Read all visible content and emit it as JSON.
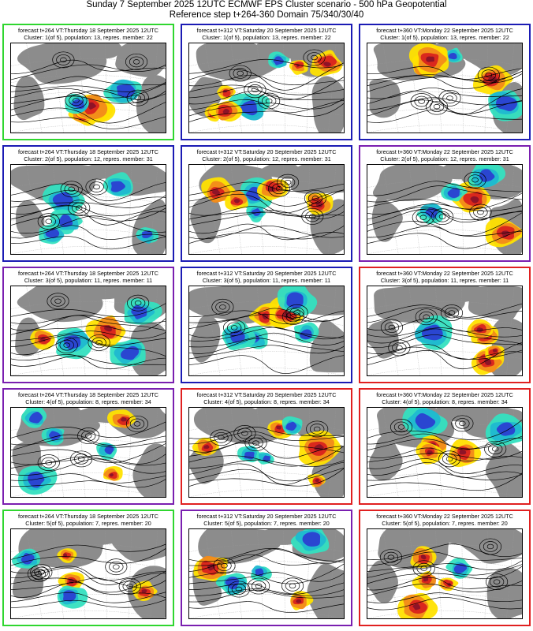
{
  "header": {
    "line1": "Sunday 7 September 2025 12UTC ECMWF EPS Cluster scenario - 500 hPa Geopotential",
    "line2": "Reference step t+264-360 Domain 75/340/30/40"
  },
  "colors": {
    "green": "#2fd62f",
    "blue": "#1b1bb4",
    "purple": "#7a1fb0",
    "red": "#e02020",
    "land": "#8c8c8c",
    "positive_light": "#ffe100",
    "positive_mid": "#f28a1a",
    "positive_strong": "#d8231e",
    "positive_extreme": "#8a1228",
    "negative_light": "#34e0c0",
    "negative_mid": "#1fb8d0",
    "negative_strong": "#2b3fd1"
  },
  "panels": [
    {
      "line1": "forecast t+264 VT:Thursday 18 September 2025 12UTC",
      "line2": "Cluster: 1(of 5), population: 13, repres. member: 22",
      "frame": "green"
    },
    {
      "line1": "forecast t+312 VT:Saturday 20 September 2025 12UTC",
      "line2": "Cluster: 1(of 5), population: 13, repres. member: 22",
      "frame": "blue"
    },
    {
      "line1": "forecast t+360 VT:Monday 22 September 2025 12UTC",
      "line2": "Cluster: 1(of 5), population: 13, repres. member: 22",
      "frame": "blue"
    },
    {
      "line1": "forecast t+264 VT:Thursday 18 September 2025 12UTC",
      "line2": "Cluster: 2(of 5), population: 12, repres. member: 31",
      "frame": "blue"
    },
    {
      "line1": "forecast t+312 VT:Saturday 20 September 2025 12UTC",
      "line2": "Cluster: 2(of 5), population: 12, repres. member: 31",
      "frame": "blue"
    },
    {
      "line1": "forecast t+360 VT:Monday 22 September 2025 12UTC",
      "line2": "Cluster: 2(of 5), population: 12, repres. member: 31",
      "frame": "purple"
    },
    {
      "line1": "forecast t+264 VT:Thursday 18 September 2025 12UTC",
      "line2": "Cluster: 3(of 5), population: 11, repres. member: 11",
      "frame": "purple"
    },
    {
      "line1": "forecast t+312 VT:Saturday 20 September 2025 12UTC",
      "line2": "Cluster: 3(of 5), population: 11, repres. member: 11",
      "frame": "blue"
    },
    {
      "line1": "forecast t+360 VT:Monday 22 September 2025 12UTC",
      "line2": "Cluster: 3(of 5), population: 11, repres. member: 11",
      "frame": "red"
    },
    {
      "line1": "forecast t+264 VT:Thursday 18 September 2025 12UTC",
      "line2": "Cluster: 4(of 5), population: 8, repres. member: 34",
      "frame": "purple"
    },
    {
      "line1": "forecast t+312 VT:Saturday 20 September 2025 12UTC",
      "line2": "Cluster: 4(of 5), population: 8, repres. member: 34",
      "frame": "red"
    },
    {
      "line1": "forecast t+360 VT:Monday 22 September 2025 12UTC",
      "line2": "Cluster: 4(of 5), population: 8, repres. member: 34",
      "frame": "red"
    },
    {
      "line1": "forecast t+264 VT:Thursday 18 September 2025 12UTC",
      "line2": "Cluster: 5(of 5), population: 7, repres. member: 20",
      "frame": "green"
    },
    {
      "line1": "forecast t+312 VT:Saturday 20 September 2025 12UTC",
      "line2": "Cluster: 5(of 5), population: 7, repres. member: 20",
      "frame": "purple"
    },
    {
      "line1": "forecast t+360 VT:Monday 22 September 2025 12UTC",
      "line2": "Cluster: 5(of 5), population: 7, repres. member: 20",
      "frame": "red"
    }
  ]
}
